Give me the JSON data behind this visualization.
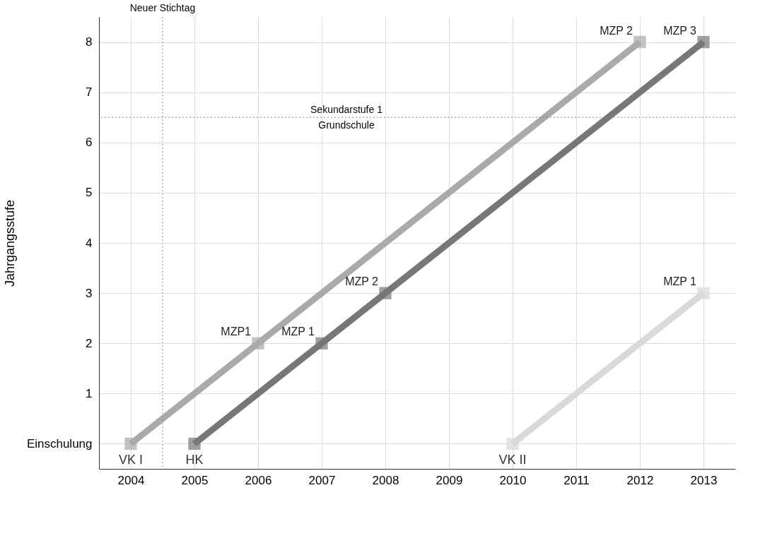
{
  "chart_data": {
    "type": "line",
    "ylabel": "Jahrgangsstufe",
    "xlim": [
      2003.5,
      2013.5
    ],
    "xticks": [
      2004,
      2005,
      2006,
      2007,
      2008,
      2009,
      2010,
      2011,
      2012,
      2013
    ],
    "ylim": [
      -0.5,
      8.5
    ],
    "yticks": [
      {
        "value": 0,
        "label": "Einschulung"
      },
      1,
      2,
      3,
      4,
      5,
      6,
      7,
      8
    ],
    "grid": true,
    "marker": "square",
    "line_style": "solid",
    "legend": false,
    "series": [
      {
        "name": "VK I",
        "color": "#aaaaaa",
        "x": [
          2004,
          2006,
          2012
        ],
        "values": [
          0,
          2,
          8
        ]
      },
      {
        "name": "HK",
        "color": "#777777",
        "x": [
          2005,
          2007,
          2008,
          2013
        ],
        "values": [
          0,
          2,
          3,
          8
        ]
      },
      {
        "name": "VK II",
        "color": "#d9d9d9",
        "x": [
          2010,
          2013
        ],
        "values": [
          0,
          3
        ]
      }
    ],
    "ref_lines": [
      {
        "axis": "x",
        "value": 2004.5,
        "label": "Neuer Stichtag",
        "line_style": "dotted",
        "color": "#888888"
      },
      {
        "axis": "y",
        "value": 6.5,
        "label": "Sekundarstufe 1",
        "line_style": "dotted",
        "color": "#888888"
      }
    ],
    "annotations": [
      "Grundschule",
      {
        "text": "MZP1",
        "x": 2006,
        "y": 2
      },
      {
        "text": "MZP 2",
        "x": 2012,
        "y": 8
      },
      {
        "text": "MZP 1",
        "x": 2007,
        "y": 2
      },
      {
        "text": "MZP 2",
        "x": 2008,
        "y": 3
      },
      {
        "text": "MZP 3",
        "x": 2013,
        "y": 8
      },
      {
        "text": "MZP 1",
        "x": 2013,
        "y": 3
      }
    ]
  }
}
